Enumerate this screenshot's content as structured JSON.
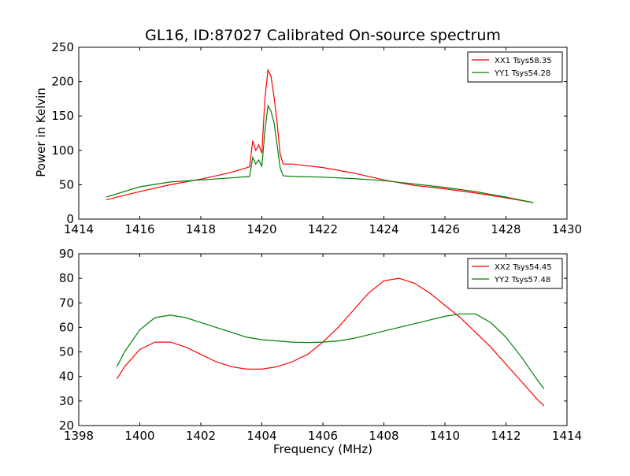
{
  "chart_data": [
    {
      "type": "line",
      "title": "GL16, ID:87027 Calibrated On-source spectrum",
      "xlabel": "",
      "ylabel": "Power in Kelvin",
      "xlim": [
        1414,
        1430
      ],
      "ylim": [
        0,
        250
      ],
      "xticks": [
        "1414",
        "1416",
        "1418",
        "1420",
        "1422",
        "1424",
        "1426",
        "1428",
        "1430"
      ],
      "yticks": [
        "0",
        "50",
        "100",
        "150",
        "200",
        "250"
      ],
      "legend_position": "top-right",
      "grid": false,
      "series": [
        {
          "name": "XX1 Tsys58.35",
          "color": "#ff0000",
          "x": [
            1414.9,
            1416,
            1417,
            1418,
            1419,
            1419.6,
            1419.7,
            1419.8,
            1419.9,
            1420.0,
            1420.1,
            1420.2,
            1420.3,
            1420.4,
            1420.5,
            1420.6,
            1420.7,
            1421,
            1422,
            1423,
            1424,
            1425,
            1426,
            1427,
            1428,
            1428.9
          ],
          "values": [
            28,
            40,
            50,
            58,
            68,
            76,
            114,
            100,
            108,
            96,
            175,
            217,
            208,
            178,
            140,
            95,
            80,
            80,
            75,
            67,
            57,
            49,
            44,
            38,
            31,
            24
          ]
        },
        {
          "name": "YY1 Tsys54.28",
          "color": "#007f00",
          "x": [
            1414.9,
            1416,
            1417,
            1418,
            1419,
            1419.6,
            1419.7,
            1419.8,
            1419.9,
            1420.0,
            1420.1,
            1420.2,
            1420.3,
            1420.4,
            1420.5,
            1420.6,
            1420.7,
            1421,
            1422,
            1423,
            1424,
            1425,
            1426,
            1427,
            1428,
            1428.9
          ],
          "values": [
            32,
            47,
            54,
            57,
            60,
            62,
            90,
            80,
            86,
            77,
            128,
            165,
            157,
            140,
            108,
            75,
            63,
            62,
            61,
            59,
            56,
            51,
            46,
            40,
            32,
            24
          ]
        }
      ]
    },
    {
      "type": "line",
      "title": "",
      "xlabel": "Frequency (MHz)",
      "ylabel": "",
      "xlim": [
        1398,
        1414
      ],
      "ylim": [
        20,
        90
      ],
      "xticks": [
        "1398",
        "1400",
        "1402",
        "1404",
        "1406",
        "1408",
        "1410",
        "1412",
        "1414"
      ],
      "yticks": [
        "20",
        "30",
        "40",
        "50",
        "60",
        "70",
        "80",
        "90"
      ],
      "legend_position": "top-right",
      "grid": false,
      "series": [
        {
          "name": "XX2 Tsys54.45",
          "color": "#ff0000",
          "x": [
            1399.25,
            1399.5,
            1400,
            1400.5,
            1401,
            1401.5,
            1402,
            1402.5,
            1403,
            1403.5,
            1404,
            1404.5,
            1405,
            1405.5,
            1406,
            1406.5,
            1407,
            1407.5,
            1408,
            1408.5,
            1409,
            1409.5,
            1410,
            1410.5,
            1411,
            1411.5,
            1412,
            1412.5,
            1413,
            1413.25
          ],
          "values": [
            39,
            44,
            51,
            54,
            54,
            52,
            49,
            46,
            44,
            43,
            43,
            44,
            46,
            49,
            54,
            60,
            67,
            74,
            79,
            80,
            78,
            74,
            69,
            64,
            58,
            52,
            45,
            38,
            31,
            28
          ]
        },
        {
          "name": "YY2 Tsys57.48",
          "color": "#007f00",
          "x": [
            1399.25,
            1399.5,
            1400,
            1400.5,
            1401,
            1401.5,
            1402,
            1402.5,
            1403,
            1403.5,
            1404,
            1404.5,
            1405,
            1405.5,
            1406,
            1406.5,
            1407,
            1407.5,
            1408,
            1408.5,
            1409,
            1409.5,
            1410,
            1410.5,
            1411,
            1411.5,
            1412,
            1412.5,
            1413,
            1413.25
          ],
          "values": [
            44,
            50,
            59,
            64,
            65,
            64,
            62,
            60,
            58,
            56,
            55,
            54.5,
            54,
            53.8,
            54,
            54.5,
            55.5,
            57,
            58.5,
            60,
            61.5,
            63,
            64.5,
            65.5,
            65.5,
            62,
            56,
            48,
            39,
            35
          ]
        }
      ]
    }
  ]
}
